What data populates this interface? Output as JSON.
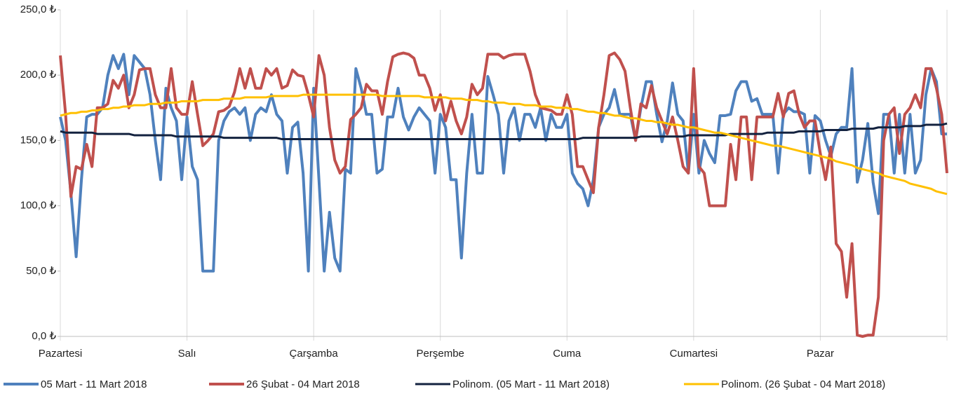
{
  "chart_data": {
    "type": "line",
    "categories": [
      "Pazartesi",
      null,
      null,
      null,
      null,
      null,
      null,
      null,
      null,
      null,
      null,
      null,
      null,
      null,
      null,
      null,
      null,
      null,
      null,
      null,
      null,
      null,
      null,
      null,
      "Salı",
      null,
      null,
      null,
      null,
      null,
      null,
      null,
      null,
      null,
      null,
      null,
      null,
      null,
      null,
      null,
      null,
      null,
      null,
      null,
      null,
      null,
      null,
      null,
      "Çarşamba",
      null,
      null,
      null,
      null,
      null,
      null,
      null,
      null,
      null,
      null,
      null,
      null,
      null,
      null,
      null,
      null,
      null,
      null,
      null,
      null,
      null,
      null,
      null,
      "Perşembe",
      null,
      null,
      null,
      null,
      null,
      null,
      null,
      null,
      null,
      null,
      null,
      null,
      null,
      null,
      null,
      null,
      null,
      null,
      null,
      null,
      null,
      null,
      null,
      "Cuma",
      null,
      null,
      null,
      null,
      null,
      null,
      null,
      null,
      null,
      null,
      null,
      null,
      null,
      null,
      null,
      null,
      null,
      null,
      null,
      null,
      null,
      null,
      null,
      "Cumartesi",
      null,
      null,
      null,
      null,
      null,
      null,
      null,
      null,
      null,
      null,
      null,
      null,
      null,
      null,
      null,
      null,
      null,
      null,
      null,
      null,
      null,
      null,
      null,
      "Pazar",
      null,
      null,
      null,
      null,
      null,
      null,
      null,
      null,
      null,
      null,
      null,
      null,
      null,
      null,
      null,
      null,
      null,
      null,
      null,
      null,
      null,
      null,
      null,
      null
    ],
    "series": [
      {
        "name": "05 Mart - 11 Mart 2018",
        "color": "#4f81bd",
        "values": [
          168,
          150,
          110,
          61,
          120,
          168,
          170,
          170,
          175,
          200,
          215,
          205,
          216,
          185,
          215,
          210,
          205,
          185,
          150,
          120,
          190,
          175,
          165,
          120,
          168,
          130,
          120,
          50,
          50,
          50,
          150,
          165,
          172,
          175,
          170,
          175,
          150,
          170,
          175,
          172,
          185,
          170,
          165,
          125,
          160,
          164,
          125,
          50,
          190,
          120,
          50,
          95,
          60,
          50,
          128,
          125,
          205,
          190,
          170,
          170,
          125,
          128,
          168,
          168,
          190,
          168,
          158,
          168,
          175,
          170,
          165,
          125,
          170,
          160,
          120,
          120,
          60,
          125,
          170,
          125,
          125,
          199,
          185,
          170,
          125,
          165,
          175,
          150,
          170,
          170,
          160,
          175,
          150,
          170,
          160,
          160,
          170,
          125,
          117,
          113,
          100,
          120,
          160,
          170,
          175,
          189,
          170,
          170,
          170,
          150,
          175,
          195,
          195,
          170,
          149,
          165,
          194,
          170,
          165,
          125,
          170,
          125,
          150,
          140,
          133,
          169,
          169,
          170,
          188,
          195,
          195,
          180,
          182,
          170,
          170,
          170,
          125,
          170,
          175,
          172,
          172,
          170,
          125,
          169,
          165,
          150,
          138,
          155,
          160,
          160,
          205,
          118,
          135,
          163,
          118,
          94,
          170,
          170,
          125,
          170,
          125,
          170,
          125,
          135,
          185,
          205,
          195,
          155,
          155
        ]
      },
      {
        "name": "26 Şubat - 04 Mart 2018",
        "color": "#c0504d",
        "values": [
          215,
          170,
          107,
          130,
          128,
          147,
          130,
          175,
          175,
          178,
          196,
          190,
          200,
          175,
          185,
          204,
          205,
          205,
          185,
          175,
          175,
          205,
          175,
          170,
          170,
          195,
          170,
          146,
          150,
          155,
          172,
          173,
          176,
          187,
          205,
          190,
          205,
          190,
          190,
          205,
          200,
          205,
          190,
          192,
          204,
          200,
          199,
          185,
          168,
          215,
          200,
          160,
          135,
          125,
          130,
          166,
          170,
          175,
          193,
          188,
          188,
          170,
          195,
          214,
          216,
          217,
          216,
          213,
          200,
          200,
          190,
          173,
          185,
          165,
          180,
          165,
          155,
          168,
          193,
          185,
          190,
          216,
          216,
          216,
          213,
          215,
          216,
          216,
          216,
          203,
          185,
          175,
          174,
          173,
          170,
          170,
          185,
          170,
          130,
          130,
          120,
          110,
          160,
          185,
          215,
          217,
          212,
          203,
          175,
          150,
          178,
          175,
          192,
          175,
          165,
          155,
          168,
          150,
          130,
          125,
          205,
          130,
          125,
          100,
          100,
          100,
          100,
          147,
          120,
          168,
          168,
          120,
          168,
          168,
          168,
          168,
          186,
          168,
          186,
          188,
          170,
          160,
          165,
          165,
          140,
          120,
          145,
          71,
          65,
          30,
          71,
          1,
          0,
          1,
          1,
          30,
          150,
          170,
          175,
          140,
          170,
          175,
          185,
          175,
          205,
          205,
          190,
          170,
          125
        ]
      },
      {
        "name": "Polinom. (05 Mart - 11 Mart 2018)",
        "color": "#13223f",
        "values": [
          157,
          156,
          156,
          156,
          156,
          156,
          156,
          155,
          155,
          155,
          155,
          155,
          155,
          155,
          154,
          154,
          154,
          154,
          154,
          154,
          154,
          154,
          153,
          153,
          153,
          153,
          153,
          153,
          153,
          153,
          153,
          152,
          152,
          152,
          152,
          152,
          152,
          152,
          152,
          152,
          152,
          152,
          151,
          151,
          151,
          151,
          151,
          151,
          151,
          151,
          151,
          151,
          151,
          151,
          151,
          151,
          151,
          151,
          151,
          151,
          151,
          151,
          151,
          151,
          151,
          151,
          151,
          151,
          151,
          151,
          151,
          151,
          151,
          151,
          151,
          151,
          151,
          151,
          151,
          151,
          151,
          151,
          151,
          151,
          151,
          151,
          151,
          151,
          151,
          151,
          151,
          151,
          151,
          151,
          151,
          151,
          151,
          151,
          151,
          152,
          152,
          152,
          152,
          152,
          152,
          152,
          152,
          152,
          152,
          152,
          153,
          153,
          153,
          153,
          153,
          153,
          153,
          153,
          153,
          154,
          154,
          154,
          154,
          154,
          154,
          154,
          154,
          155,
          155,
          155,
          155,
          155,
          155,
          155,
          156,
          156,
          156,
          156,
          156,
          156,
          157,
          157,
          157,
          157,
          157,
          158,
          158,
          158,
          158,
          158,
          159,
          159,
          159,
          159,
          159,
          160,
          160,
          160,
          160,
          160,
          161,
          161,
          161,
          161,
          162,
          162,
          162,
          162,
          163
        ]
      },
      {
        "name": "Polinom. (26 Şubat - 04 Mart 2018)",
        "color": "#ffc000",
        "values": [
          169,
          170,
          171,
          171,
          172,
          172,
          173,
          173,
          174,
          174,
          175,
          175,
          176,
          176,
          177,
          177,
          177,
          178,
          178,
          178,
          179,
          179,
          179,
          180,
          180,
          180,
          180,
          181,
          181,
          181,
          181,
          182,
          182,
          182,
          182,
          183,
          183,
          183,
          183,
          183,
          184,
          184,
          184,
          184,
          184,
          184,
          185,
          185,
          185,
          185,
          185,
          185,
          185,
          185,
          185,
          185,
          185,
          185,
          185,
          185,
          185,
          184,
          184,
          184,
          184,
          184,
          184,
          184,
          184,
          183,
          183,
          183,
          183,
          183,
          182,
          182,
          182,
          181,
          181,
          181,
          180,
          180,
          179,
          179,
          179,
          178,
          178,
          178,
          177,
          177,
          177,
          176,
          176,
          176,
          175,
          175,
          175,
          174,
          174,
          173,
          172,
          172,
          171,
          171,
          170,
          169,
          169,
          168,
          167,
          167,
          166,
          165,
          165,
          164,
          164,
          163,
          162,
          162,
          161,
          160,
          160,
          159,
          158,
          157,
          156,
          156,
          155,
          154,
          153,
          152,
          151,
          150,
          149,
          148,
          147,
          146,
          146,
          145,
          144,
          143,
          142,
          141,
          140,
          139,
          138,
          137,
          136,
          134,
          133,
          132,
          131,
          129,
          128,
          127,
          126,
          125,
          123,
          122,
          121,
          120,
          119,
          117,
          116,
          115,
          114,
          113,
          111,
          110,
          109
        ]
      }
    ],
    "ylim": [
      0,
      250
    ],
    "yticks": [
      {
        "value": 0,
        "label": "0,0 ₺"
      },
      {
        "value": 50,
        "label": "50,0 ₺"
      },
      {
        "value": 100,
        "label": "100,0 ₺"
      },
      {
        "value": 150,
        "label": "150,0 ₺"
      },
      {
        "value": 200,
        "label": "200,0 ₺"
      },
      {
        "value": 250,
        "label": "250,0 ₺"
      }
    ],
    "legend": "bottom"
  }
}
